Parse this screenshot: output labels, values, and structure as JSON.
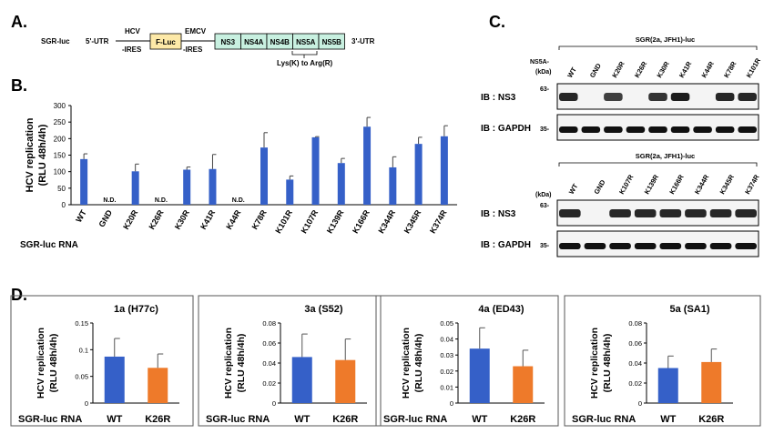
{
  "panels": {
    "a": {
      "label": "A.",
      "construct": "SGR-luc",
      "utr5": "5'-UTR",
      "hcv_ires": [
        "HCV",
        "-IRES"
      ],
      "fluc": "F-Luc",
      "emcv_ires": [
        "EMCV",
        "-IRES"
      ],
      "ns_boxes": [
        "NS3",
        "NS4A",
        "NS4B",
        "NS5A",
        "NS5B"
      ],
      "utr3": "3'-UTR",
      "mutation_note": "Lys(K) to Arg(R)",
      "colors": {
        "fluc": "#fde9a8",
        "ns": "#c8f0e0"
      }
    },
    "b": {
      "label": "B.",
      "row_label": "SGR-luc RNA",
      "nd_label": "N.D."
    },
    "c": {
      "label": "C.",
      "top_header": "SGR(2a, JFH1)-luc",
      "top_lanes": [
        "WT",
        "GND",
        "K20R",
        "K26R",
        "K30R",
        "K41R",
        "K44R",
        "K78R",
        "K101R"
      ],
      "bottom_header": "SGR(2a, JFH1)-luc",
      "bottom_lanes": [
        "WT",
        "GND",
        "K107R",
        "K139R",
        "K166R",
        "K344R",
        "K345R",
        "K374R"
      ],
      "ns5a_label": "NS5A-",
      "kda_label": "(kDa)",
      "marker_63": "63-",
      "marker_35": "35-",
      "ib_ns3": "IB : NS3",
      "ib_gapdh": "IB : GAPDH"
    },
    "d": {
      "label": "D.",
      "row_label": "SGR-luc RNA"
    }
  },
  "chart_data": [
    {
      "type": "bar",
      "panel": "B",
      "ylabel": "HCV replication\n(RLU 48h/4h)",
      "categories": [
        "WT",
        "GND",
        "K20R",
        "K26R",
        "K30R",
        "K41R",
        "K44R",
        "K78R",
        "K101R",
        "K107R",
        "K139R",
        "K166R",
        "K344R",
        "K345R",
        "K374R"
      ],
      "values": [
        138,
        null,
        101,
        null,
        106,
        108,
        null,
        173,
        76,
        204,
        126,
        236,
        113,
        184,
        207
      ],
      "errors": [
        16,
        null,
        22,
        null,
        8,
        44,
        null,
        45,
        11,
        2,
        14,
        28,
        32,
        20,
        32
      ],
      "not_detected": [
        "GND",
        "K26R",
        "K44R"
      ],
      "ylim": [
        0,
        300
      ],
      "yticks": [
        0,
        50,
        100,
        150,
        200,
        250,
        300
      ],
      "color": "#3560c8"
    },
    {
      "type": "bar",
      "panel": "D",
      "title": "1a (H77c)",
      "ylabel": "HCV replication\n(RLU 48h/4h)",
      "categories": [
        "WT",
        "K26R"
      ],
      "values": [
        0.087,
        0.066
      ],
      "errors": [
        0.034,
        0.026
      ],
      "colors": [
        "#3560c8",
        "#ee7a2a"
      ],
      "ylim": [
        0,
        0.15
      ],
      "yticks": [
        0,
        0.05,
        0.1,
        0.15
      ],
      "ytick_labels": [
        "0",
        "0.05",
        "0.1",
        "0.15"
      ]
    },
    {
      "type": "bar",
      "panel": "D",
      "title": "3a (S52)",
      "ylabel": "HCV replication\n(RLU 48h/4h)",
      "categories": [
        "WT",
        "K26R"
      ],
      "values": [
        0.046,
        0.043
      ],
      "errors": [
        0.023,
        0.021
      ],
      "colors": [
        "#3560c8",
        "#ee7a2a"
      ],
      "ylim": [
        0,
        0.08
      ],
      "yticks": [
        0,
        0.02,
        0.04,
        0.06,
        0.08
      ],
      "ytick_labels": [
        "0",
        "0.02",
        "0.04",
        "0.06",
        "0.08"
      ]
    },
    {
      "type": "bar",
      "panel": "D",
      "title": "4a (ED43)",
      "ylabel": "HCV replication\n(RLU 48h/4h)",
      "categories": [
        "WT",
        "K26R"
      ],
      "values": [
        0.034,
        0.023
      ],
      "errors": [
        0.013,
        0.01
      ],
      "colors": [
        "#3560c8",
        "#ee7a2a"
      ],
      "ylim": [
        0,
        0.05
      ],
      "yticks": [
        0,
        0.01,
        0.02,
        0.03,
        0.04,
        0.05
      ],
      "ytick_labels": [
        "0",
        "0.01",
        "0.02",
        "0.03",
        "0.04",
        "0.05"
      ]
    },
    {
      "type": "bar",
      "panel": "D",
      "title": "5a (SA1)",
      "ylabel": "HCV replication\n(RLU 48h/4h)",
      "categories": [
        "WT",
        "K26R"
      ],
      "values": [
        0.035,
        0.041
      ],
      "errors": [
        0.012,
        0.013
      ],
      "colors": [
        "#3560c8",
        "#ee7a2a"
      ],
      "ylim": [
        0,
        0.08
      ],
      "yticks": [
        0,
        0.02,
        0.04,
        0.06,
        0.08
      ],
      "ytick_labels": [
        "0",
        "0.02",
        "0.04",
        "0.06",
        "0.08"
      ]
    }
  ],
  "blots": {
    "top_ns3": [
      0.9,
      0,
      0.8,
      0,
      0.85,
      0.95,
      0,
      0.9,
      0.9
    ],
    "top_gapdh": [
      1,
      1,
      1,
      1,
      1,
      1,
      1,
      1,
      1
    ],
    "bottom_ns3": [
      0.9,
      0,
      0.9,
      0.9,
      0.9,
      0.9,
      0.9,
      0.9
    ],
    "bottom_gapdh": [
      1,
      1,
      1,
      1,
      1,
      1,
      1,
      1
    ]
  }
}
